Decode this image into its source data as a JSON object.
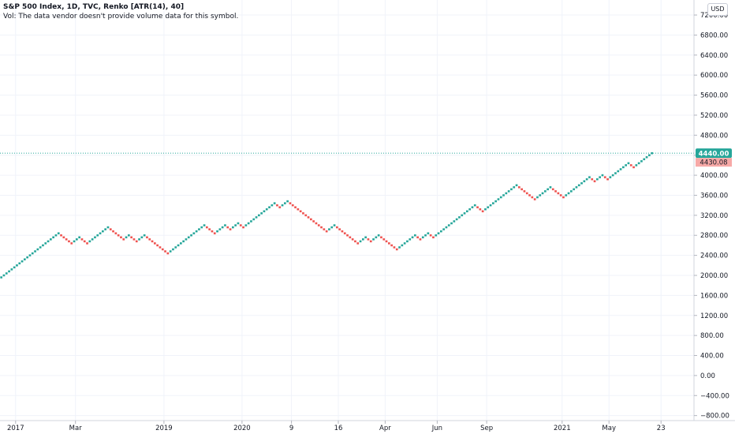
{
  "header": {
    "title": "S&P 500 Index, 1D, TVC, Renko [ATR(14), 40]",
    "volume_note": "Vol: The data vendor doesn't provide volume data for this symbol.",
    "currency": "USD"
  },
  "colors": {
    "up": "#26a69a",
    "down": "#ef5350",
    "last_label_bg": "#26a69a",
    "prev_label_bg": "#f7a9a7",
    "grid": "#f0f3fa",
    "axis_text": "#131722"
  },
  "price_labels": {
    "last": "4440.00",
    "prev": "4430.08"
  },
  "chart_data": {
    "type": "renko",
    "brick_size": 40,
    "y_ticks": [
      "7200.00",
      "6800.00",
      "6400.00",
      "6000.00",
      "5600.00",
      "5200.00",
      "4800.00",
      "4400.00",
      "4000.00",
      "3600.00",
      "3200.00",
      "2800.00",
      "2400.00",
      "2000.00",
      "1600.00",
      "1200.00",
      "800.00",
      "400.00",
      "0.00",
      "−400.00",
      "−800.00"
    ],
    "y_tick_values": [
      7200,
      6800,
      6400,
      6000,
      5600,
      5200,
      4800,
      4400,
      4000,
      3600,
      3200,
      2800,
      2400,
      2000,
      1600,
      1200,
      800,
      400,
      0,
      -400,
      -800
    ],
    "ylim": [
      -900,
      7500
    ],
    "x_ticks": [
      "2017",
      "Mar",
      "2019",
      "2020",
      "9",
      "16",
      "Apr",
      "Jun",
      "Sep",
      "2021",
      "May",
      "23"
    ],
    "x_tick_bricks": [
      6,
      29,
      63,
      93,
      112,
      130,
      148,
      168,
      187,
      216,
      234,
      254
    ],
    "last_price": 4440,
    "prev_close": 4430.08,
    "start_price": 1940,
    "segments": [
      {
        "dir": "up",
        "count": 23
      },
      {
        "dir": "down",
        "count": 5
      },
      {
        "dir": "up",
        "count": 3
      },
      {
        "dir": "down",
        "count": 3
      },
      {
        "dir": "up",
        "count": 8
      },
      {
        "dir": "down",
        "count": 6
      },
      {
        "dir": "up",
        "count": 2
      },
      {
        "dir": "down",
        "count": 3
      },
      {
        "dir": "up",
        "count": 3
      },
      {
        "dir": "down",
        "count": 9
      },
      {
        "dir": "up",
        "count": 14
      },
      {
        "dir": "down",
        "count": 4
      },
      {
        "dir": "up",
        "count": 4
      },
      {
        "dir": "down",
        "count": 2
      },
      {
        "dir": "up",
        "count": 3
      },
      {
        "dir": "down",
        "count": 2
      },
      {
        "dir": "up",
        "count": 12
      },
      {
        "dir": "down",
        "count": 2
      },
      {
        "dir": "up",
        "count": 3
      },
      {
        "dir": "down",
        "count": 15
      },
      {
        "dir": "up",
        "count": 3
      },
      {
        "dir": "down",
        "count": 9
      },
      {
        "dir": "up",
        "count": 3
      },
      {
        "dir": "down",
        "count": 2
      },
      {
        "dir": "up",
        "count": 3
      },
      {
        "dir": "down",
        "count": 7
      },
      {
        "dir": "up",
        "count": 7
      },
      {
        "dir": "down",
        "count": 2
      },
      {
        "dir": "up",
        "count": 3
      },
      {
        "dir": "down",
        "count": 2
      },
      {
        "dir": "up",
        "count": 16
      },
      {
        "dir": "down",
        "count": 3
      },
      {
        "dir": "up",
        "count": 13
      },
      {
        "dir": "down",
        "count": 7
      },
      {
        "dir": "up",
        "count": 6
      },
      {
        "dir": "down",
        "count": 5
      },
      {
        "dir": "up",
        "count": 10
      },
      {
        "dir": "down",
        "count": 2
      },
      {
        "dir": "up",
        "count": 3
      },
      {
        "dir": "down",
        "count": 2
      },
      {
        "dir": "up",
        "count": 8
      },
      {
        "dir": "down",
        "count": 2
      },
      {
        "dir": "up",
        "count": 7
      }
    ]
  }
}
